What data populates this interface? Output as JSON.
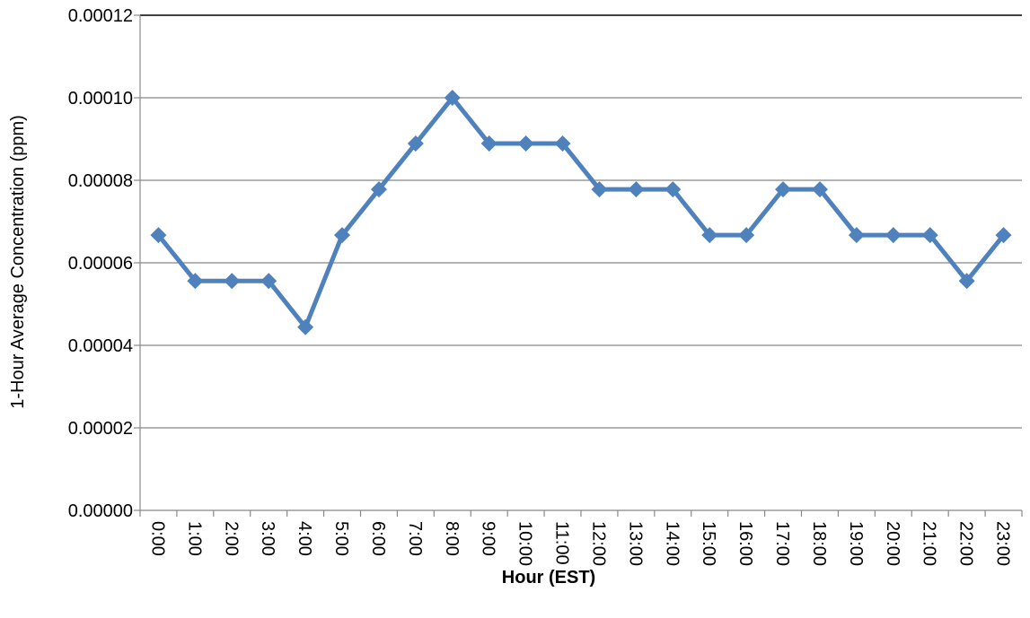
{
  "chart_data": {
    "type": "line",
    "title": "",
    "xlabel": "Hour (EST)",
    "ylabel": "1-Hour Average Concentration (ppm)",
    "categories": [
      "0:00",
      "1:00",
      "2:00",
      "3:00",
      "4:00",
      "5:00",
      "6:00",
      "7:00",
      "8:00",
      "9:00",
      "10:00",
      "11:00",
      "12:00",
      "13:00",
      "14:00",
      "15:00",
      "16:00",
      "17:00",
      "18:00",
      "19:00",
      "20:00",
      "21:00",
      "22:00",
      "23:00"
    ],
    "series": [
      {
        "values": [
          6.67e-05,
          5.56e-05,
          5.56e-05,
          5.56e-05,
          4.44e-05,
          6.67e-05,
          7.78e-05,
          8.89e-05,
          0.0001,
          8.89e-05,
          8.89e-05,
          8.89e-05,
          7.78e-05,
          7.78e-05,
          7.78e-05,
          6.67e-05,
          6.67e-05,
          7.78e-05,
          7.78e-05,
          6.67e-05,
          6.67e-05,
          6.67e-05,
          5.56e-05,
          6.67e-05
        ],
        "marker": "diamond"
      }
    ],
    "ylim": [
      0,
      0.00012
    ],
    "yticks": [
      "0.00000",
      "0.00002",
      "0.00004",
      "0.00006",
      "0.00008",
      "0.00010",
      "0.00012"
    ],
    "grid": true,
    "legend": "none",
    "colors": {
      "series": "#4F81BD",
      "grid": "#888888",
      "axis": "#888888",
      "frame_top": "#000000"
    }
  }
}
